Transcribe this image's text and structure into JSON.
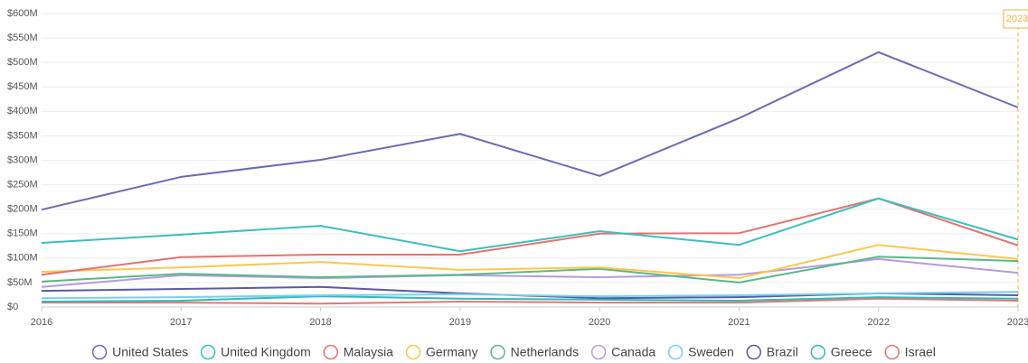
{
  "chart_data": {
    "type": "line",
    "x": [
      2016,
      2017,
      2018,
      2019,
      2020,
      2021,
      2022,
      2023
    ],
    "xlim": [
      2016,
      2023
    ],
    "xticks": [
      2016,
      2017,
      2018,
      2019,
      2020,
      2021,
      2022,
      2023
    ],
    "ylim": [
      0,
      600
    ],
    "yticks": [
      {
        "value": 0,
        "label": "$0"
      },
      {
        "value": 50,
        "label": "$50M"
      },
      {
        "value": 100,
        "label": "$100M"
      },
      {
        "value": 150,
        "label": "$150M"
      },
      {
        "value": 200,
        "label": "$200M"
      },
      {
        "value": 250,
        "label": "$250M"
      },
      {
        "value": 300,
        "label": "$300M"
      },
      {
        "value": 350,
        "label": "$350M"
      },
      {
        "value": 400,
        "label": "$400M"
      },
      {
        "value": 450,
        "label": "$450M"
      },
      {
        "value": 500,
        "label": "$500M"
      },
      {
        "value": 550,
        "label": "$550M"
      },
      {
        "value": 600,
        "label": "$600M"
      }
    ],
    "grid": true,
    "legend": "bottom",
    "highlight_x": 2023,
    "highlight_color": "#f5b041",
    "series": [
      {
        "name": "United States",
        "color": "#6b6bb8",
        "values": [
          199,
          266,
          301,
          354,
          268,
          386,
          521,
          408
        ]
      },
      {
        "name": "United Kingdom",
        "color": "#3dbfbf",
        "values": [
          131,
          148,
          166,
          114,
          155,
          127,
          222,
          138
        ]
      },
      {
        "name": "Malaysia",
        "color": "#e57373",
        "values": [
          66,
          102,
          107,
          107,
          150,
          151,
          222,
          126
        ]
      },
      {
        "name": "Germany",
        "color": "#fcc84a",
        "values": [
          72,
          81,
          92,
          76,
          81,
          59,
          127,
          98
        ]
      },
      {
        "name": "Netherlands",
        "color": "#5cb88a",
        "values": [
          52,
          68,
          61,
          66,
          78,
          50,
          103,
          94
        ]
      },
      {
        "name": "Canada",
        "color": "#b79ae0",
        "values": [
          41,
          65,
          59,
          65,
          61,
          66,
          98,
          70
        ]
      },
      {
        "name": "Sweden",
        "color": "#74d2ef",
        "values": [
          18,
          20,
          24,
          26,
          22,
          24,
          28,
          31
        ]
      },
      {
        "name": "Brazil",
        "color": "#5b5ba8",
        "values": [
          33,
          37,
          41,
          28,
          18,
          20,
          28,
          24
        ]
      },
      {
        "name": "Greece",
        "color": "#38b8b8",
        "values": [
          11,
          13,
          22,
          17,
          15,
          13,
          20,
          17
        ]
      },
      {
        "name": "Israel",
        "color": "#e07a74",
        "values": [
          9,
          9,
          7,
          11,
          9,
          9,
          17,
          13
        ]
      }
    ]
  }
}
